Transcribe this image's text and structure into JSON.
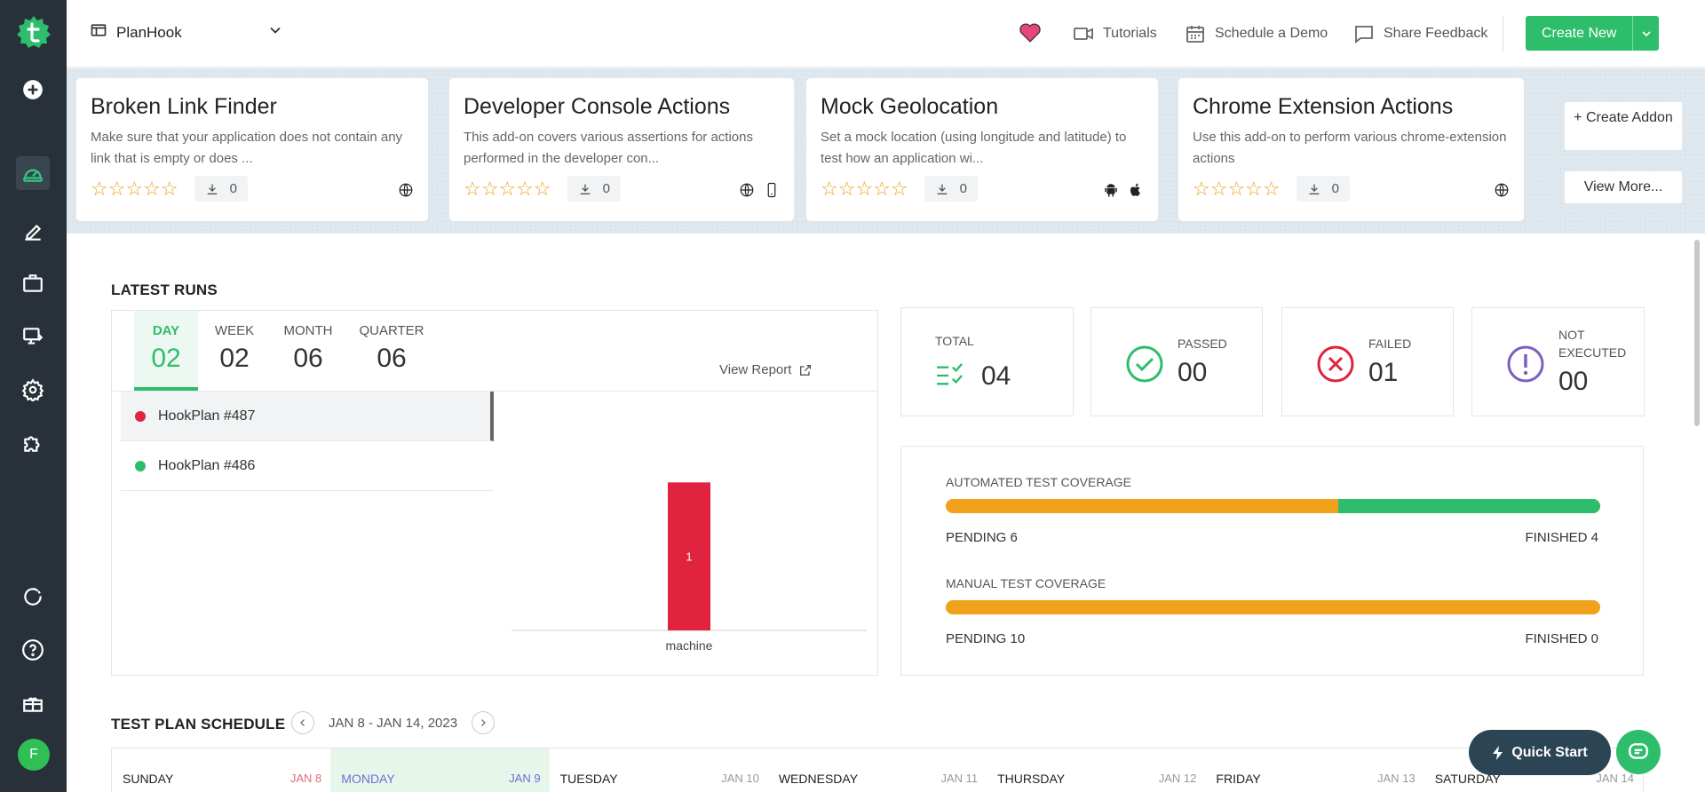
{
  "app": {
    "avatar_letter": "F",
    "brand_color": "#2ebd6b"
  },
  "header": {
    "project_name": "PlanHook",
    "links": {
      "tutorials": "Tutorials",
      "demo": "Schedule a Demo",
      "feedback": "Share Feedback"
    },
    "create_label": "Create New"
  },
  "addons": {
    "cards": [
      {
        "title": "Broken Link Finder",
        "desc": "Make sure that your application does not contain any link that is empty or does ...",
        "downloads": "0",
        "rating": 0
      },
      {
        "title": "Developer Console Actions",
        "desc": "This add-on covers various assertions for actions performed in the developer con...",
        "downloads": "0",
        "rating": 0
      },
      {
        "title": "Mock Geolocation",
        "desc": "Set a mock location (using longitude and latitude) to test how an application wi...",
        "downloads": "0",
        "rating": 0
      },
      {
        "title": "Chrome Extension Actions",
        "desc": "Use this add-on to perform various chrome-extension actions",
        "downloads": "0",
        "rating": 0
      }
    ],
    "create_addon": "+ Create Addon",
    "view_more": "View More..."
  },
  "latest_runs": {
    "title": "LATEST RUNS",
    "periods": [
      {
        "label": "DAY",
        "value": "02"
      },
      {
        "label": "WEEK",
        "value": "02"
      },
      {
        "label": "MONTH",
        "value": "06"
      },
      {
        "label": "QUARTER",
        "value": "06"
      }
    ],
    "view_report": "View Report",
    "plans": [
      {
        "name": "HookPlan #487",
        "status_color": "#e0233f"
      },
      {
        "name": "HookPlan #486",
        "status_color": "#2ebd6b"
      }
    ]
  },
  "chart_data": {
    "type": "bar",
    "categories": [
      "machine"
    ],
    "values": [
      1
    ],
    "data_labels": [
      "1"
    ],
    "bar_color": "#e0233f",
    "ylim": [
      0,
      1.2
    ]
  },
  "stats": {
    "total": {
      "label": "TOTAL",
      "value": "04"
    },
    "passed": {
      "label": "PASSED",
      "value": "00"
    },
    "failed": {
      "label": "FAILED",
      "value": "01"
    },
    "not_executed": {
      "label1": "NOT",
      "label2": "EXECUTED",
      "value": "00"
    }
  },
  "coverage": {
    "automated": {
      "title": "AUTOMATED TEST COVERAGE",
      "pending": "PENDING 6",
      "finished": "FINISHED 4",
      "finished_fraction": 0.4
    },
    "manual": {
      "title": "MANUAL TEST COVERAGE",
      "pending": "PENDING 10",
      "finished": "FINISHED 0",
      "finished_fraction": 0
    }
  },
  "schedule": {
    "title": "TEST PLAN SCHEDULE",
    "range": "JAN 8 - JAN 14, 2023",
    "days": [
      {
        "name": "SUNDAY",
        "date": "JAN 8"
      },
      {
        "name": "MONDAY",
        "date": "JAN 9"
      },
      {
        "name": "TUESDAY",
        "date": "JAN 10"
      },
      {
        "name": "WEDNESDAY",
        "date": "JAN 11"
      },
      {
        "name": "THURSDAY",
        "date": "JAN 12"
      },
      {
        "name": "FRIDAY",
        "date": "JAN 13"
      },
      {
        "name": "SATURDAY",
        "date": "JAN 14"
      }
    ]
  },
  "quick_start": "Quick Start"
}
